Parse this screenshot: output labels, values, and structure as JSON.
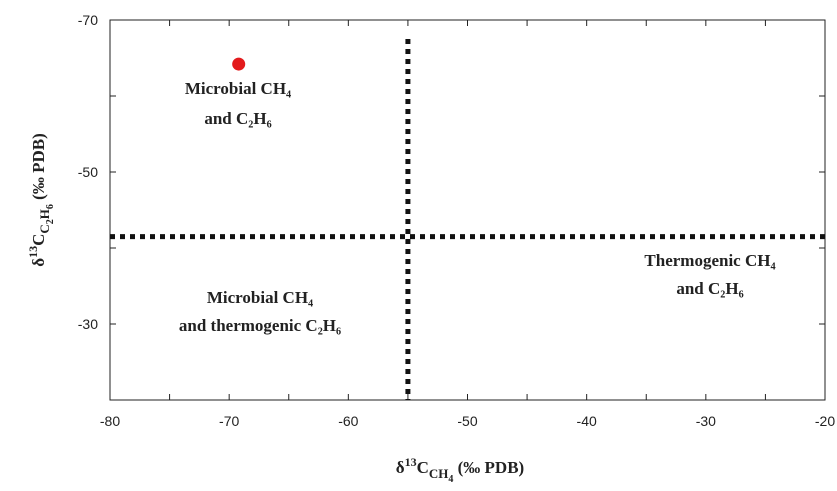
{
  "chart_data": {
    "type": "scatter",
    "x_label": [
      {
        "t": "δ"
      },
      {
        "t": "13",
        "s": "sup"
      },
      {
        "t": "C"
      },
      {
        "t": "CH",
        "s": "sub"
      },
      {
        "t": "4",
        "s": "subsub"
      },
      {
        "t": " (‰ PDB)"
      }
    ],
    "y_label": [
      {
        "t": "δ"
      },
      {
        "t": "13",
        "s": "sup"
      },
      {
        "t": "C"
      },
      {
        "t": "C",
        "s": "sub"
      },
      {
        "t": "2",
        "s": "subsub"
      },
      {
        "t": "H",
        "s": "sub"
      },
      {
        "t": "6",
        "s": "subsub"
      },
      {
        "t": " (‰ PDB)"
      }
    ],
    "x": [
      -69.2
    ],
    "values": [
      -64.2
    ],
    "color": "#e31a1c",
    "xlim": [
      -80,
      -20
    ],
    "xticks": [
      -80,
      -70,
      -60,
      -50,
      -40,
      -30,
      -20
    ],
    "xticks_minor": [
      -75,
      -65,
      -55,
      -45,
      -35,
      -25
    ],
    "ylim": [
      -20,
      -70
    ],
    "yticks": [
      -70,
      -50,
      -30
    ],
    "yticks_minor": [
      -60,
      -40
    ],
    "reference_lines": [
      {
        "x": -55,
        "from": -67.5,
        "to": -20
      },
      {
        "y": -41.5
      }
    ],
    "annotations": [
      [
        "Microbial CH₄",
        "and C₂H₆"
      ],
      [
        "Microbial CH₄",
        "and thermogenic C₂H₆"
      ],
      [
        "Thermogenic CH₄",
        "and C₂H₆"
      ]
    ]
  }
}
